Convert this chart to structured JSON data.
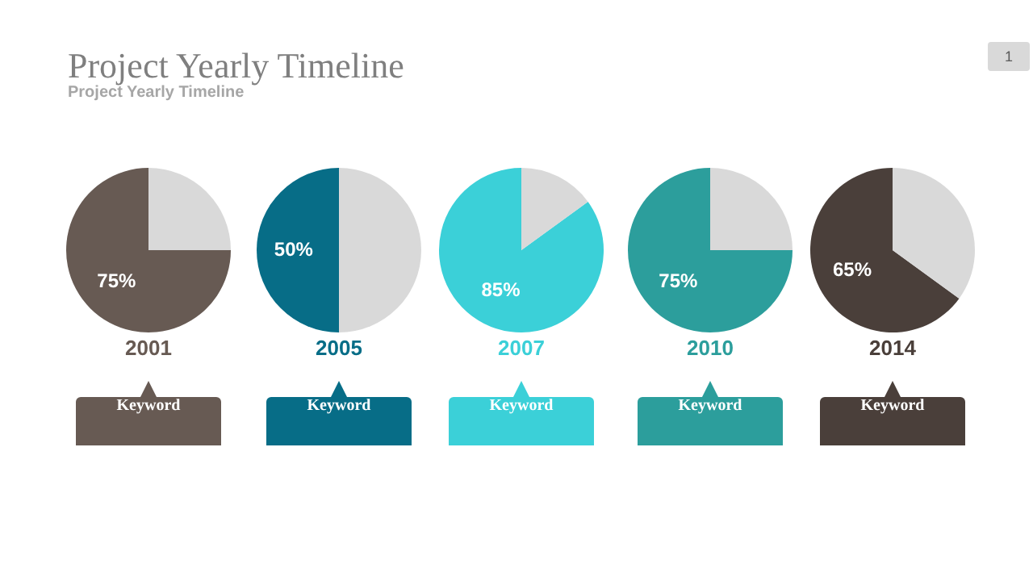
{
  "chart_data": [
    {
      "type": "pie",
      "title": "Project Yearly Timeline",
      "subtitle": "Project Yearly Timeline",
      "categories": [
        null,
        null
      ],
      "values": [
        75,
        25
      ],
      "colors": [
        "#675a53",
        "#d9d9d9"
      ],
      "value_labels": [
        "75%",
        null
      ],
      "xlabel": "2001",
      "annotations": [
        "Keyword",
        "1"
      ],
      "legend": false
    },
    {
      "type": "pie",
      "categories": [
        null,
        null
      ],
      "values": [
        50,
        50
      ],
      "colors": [
        "#076d87",
        "#d9d9d9"
      ],
      "value_labels": [
        "50%",
        null
      ],
      "xlabel": "2005",
      "annotations": [
        "Keyword"
      ],
      "legend": false
    },
    {
      "type": "pie",
      "categories": [
        null,
        null
      ],
      "values": [
        85,
        15
      ],
      "colors": [
        "#3bd0d8",
        "#d9d9d9"
      ],
      "value_labels": [
        "85%",
        null
      ],
      "xlabel": "2007",
      "annotations": [
        "Keyword"
      ],
      "legend": false
    },
    {
      "type": "pie",
      "categories": [
        null,
        null
      ],
      "values": [
        75,
        25
      ],
      "colors": [
        "#2c9e9c",
        "#d9d9d9"
      ],
      "value_labels": [
        "75%",
        null
      ],
      "xlabel": "2010",
      "annotations": [
        "Keyword"
      ],
      "legend": false
    },
    {
      "type": "pie",
      "categories": [
        null,
        null
      ],
      "values": [
        65,
        35
      ],
      "colors": [
        "#4a3f3a",
        "#d9d9d9"
      ],
      "value_labels": [
        "65%",
        null
      ],
      "xlabel": "2014",
      "annotations": [
        "Keyword"
      ],
      "legend": false
    }
  ]
}
